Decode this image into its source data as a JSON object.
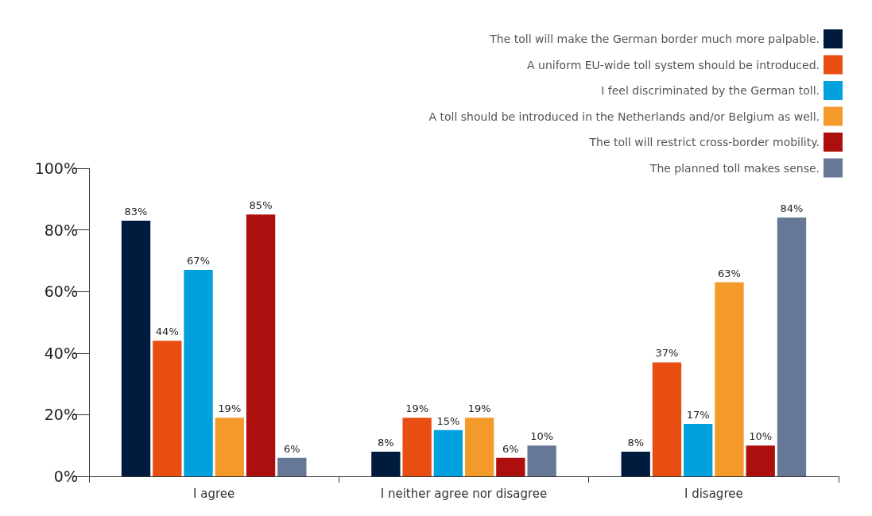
{
  "chart_data": {
    "type": "bar",
    "categories": [
      "I agree",
      "I neither agree nor disagree",
      "I disagree"
    ],
    "series": [
      {
        "name": "The toll will make the German border much more palpable.",
        "color": "#001b3d",
        "values": [
          83,
          8,
          8
        ],
        "value_labels": [
          "83%",
          "8%",
          "8%"
        ]
      },
      {
        "name": "A uniform EU-wide toll system should be introduced.",
        "color": "#e84e12",
        "values": [
          44,
          19,
          37
        ],
        "value_labels": [
          "44%",
          "19%",
          "37%"
        ]
      },
      {
        "name": "I feel discriminated by the German toll.",
        "color": "#00a1de",
        "values": [
          67,
          15,
          17
        ],
        "value_labels": [
          "67%",
          "15%",
          "17%"
        ]
      },
      {
        "name": "A toll should be introduced in the Netherlands and/or Belgium as well.",
        "color": "#f39a2b",
        "values": [
          19,
          19,
          63
        ],
        "value_labels": [
          "19%",
          "19%",
          "63%"
        ]
      },
      {
        "name": "The toll will restrict cross-border mobility.",
        "color": "#ad0f0f",
        "values": [
          85,
          6,
          10
        ],
        "value_labels": [
          "85%",
          "6%",
          "10%"
        ]
      },
      {
        "name": "The planned toll makes sense.",
        "color": "#667896",
        "values": [
          6,
          10,
          84
        ],
        "value_labels": [
          "6%",
          "10%",
          "84%"
        ]
      }
    ],
    "ylim": [
      0,
      100
    ],
    "yticks": [
      {
        "value": 0,
        "label": "0%"
      },
      {
        "value": 20,
        "label": "20%"
      },
      {
        "value": 40,
        "label": "40%"
      },
      {
        "value": 60,
        "label": "60%"
      },
      {
        "value": 80,
        "label": "80%"
      },
      {
        "value": 100,
        "label": "100%"
      }
    ],
    "grid": false,
    "legend": "top right"
  }
}
